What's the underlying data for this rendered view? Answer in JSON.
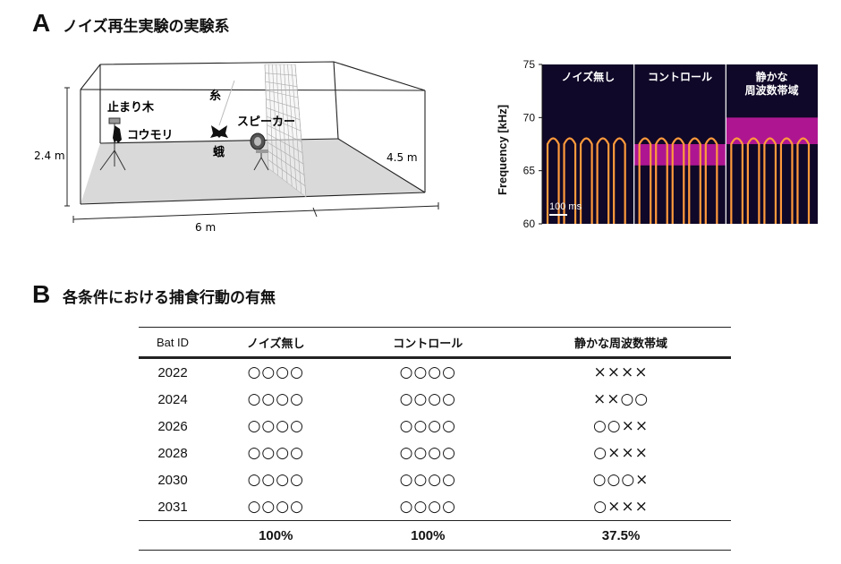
{
  "panel_a": {
    "letter": "A",
    "title": "ノイズ再生実験の実験系",
    "room": {
      "height": "2.4 m",
      "depth": "4.5 m",
      "width": "6 m",
      "perch": "止まり木",
      "bat": "コウモリ",
      "thread": "糸",
      "moth": "蛾",
      "speaker": "スピーカー"
    },
    "spectrogram": {
      "ylabel": "Frequency [kHz]",
      "yticks": [
        "75",
        "70",
        "65",
        "60"
      ],
      "ylim": [
        60,
        75
      ],
      "scale_bar": "100 ms",
      "conditions": [
        {
          "label": "ノイズ無し",
          "noise_band": null
        },
        {
          "label": "コントロール",
          "noise_band": [
            65.5,
            67.5
          ]
        },
        {
          "label": "静かな\n周波数帯域",
          "noise_band": [
            67.5,
            70
          ]
        }
      ],
      "colors": {
        "background": "#100828",
        "signal": "#ff9a3c",
        "noise": "#c0189c"
      }
    }
  },
  "panel_b": {
    "letter": "B",
    "title": "各条件における捕食行動の有無",
    "columns": [
      "Bat ID",
      "ノイズ無し",
      "コントロール",
      "静かな周波数帯域"
    ],
    "rows": [
      {
        "id": "2022",
        "c1": "○○○○",
        "c2": "○○○○",
        "c3": "××××"
      },
      {
        "id": "2024",
        "c1": "○○○○",
        "c2": "○○○○",
        "c3": "××○○"
      },
      {
        "id": "2026",
        "c1": "○○○○",
        "c2": "○○○○",
        "c3": "○○××"
      },
      {
        "id": "2028",
        "c1": "○○○○",
        "c2": "○○○○",
        "c3": "○×××"
      },
      {
        "id": "2030",
        "c1": "○○○○",
        "c2": "○○○○",
        "c3": "○○○×"
      },
      {
        "id": "2031",
        "c1": "○○○○",
        "c2": "○○○○",
        "c3": "○×××"
      }
    ],
    "totals": {
      "c1": "100%",
      "c2": "100%",
      "c3": "37.5%"
    }
  }
}
